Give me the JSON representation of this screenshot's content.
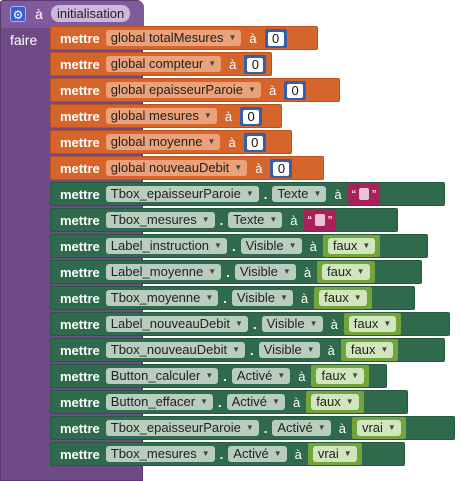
{
  "event": {
    "prefix": "à",
    "name": "initialisation",
    "faire": "faire"
  },
  "keyword": "mettre",
  "connector": "à",
  "dot": ".",
  "globals": [
    {
      "name": "global totalMesures",
      "value": "0"
    },
    {
      "name": "global compteur",
      "value": "0"
    },
    {
      "name": "global epaisseurParoie",
      "value": "0"
    },
    {
      "name": "global mesures",
      "value": "0"
    },
    {
      "name": "global moyenne",
      "value": "0"
    },
    {
      "name": "global nouveauDebit",
      "value": "0"
    }
  ],
  "props": [
    {
      "component": "Tbox_epaisseurParoie",
      "property": "Texte",
      "value_type": "text",
      "value": "\" \""
    },
    {
      "component": "Tbox_mesures",
      "property": "Texte",
      "value_type": "text",
      "value": "\" \""
    },
    {
      "component": "Label_instruction",
      "property": "Visible",
      "value_type": "bool",
      "value": "faux"
    },
    {
      "component": "Label_moyenne",
      "property": "Visible",
      "value_type": "bool",
      "value": "faux"
    },
    {
      "component": "Tbox_moyenne",
      "property": "Visible",
      "value_type": "bool",
      "value": "faux"
    },
    {
      "component": "Label_nouveauDebit",
      "property": "Visible",
      "value_type": "bool",
      "value": "faux"
    },
    {
      "component": "Tbox_nouveauDebit",
      "property": "Visible",
      "value_type": "bool",
      "value": "faux"
    },
    {
      "component": "Button_calculer",
      "property": "Activé",
      "value_type": "bool",
      "value": "faux"
    },
    {
      "component": "Button_effacer",
      "property": "Activé",
      "value_type": "bool",
      "value": "faux"
    },
    {
      "component": "Tbox_epaisseurParoie",
      "property": "Activé",
      "value_type": "bool",
      "value": "vrai"
    },
    {
      "component": "Tbox_mesures",
      "property": "Activé",
      "value_type": "bool",
      "value": "vrai"
    }
  ],
  "colors": {
    "event": "#6e4a86",
    "variable": "#d6652c",
    "component": "#2e6a4b",
    "number": "#355fa8",
    "text": "#a9215b",
    "logic": "#71a53c"
  }
}
